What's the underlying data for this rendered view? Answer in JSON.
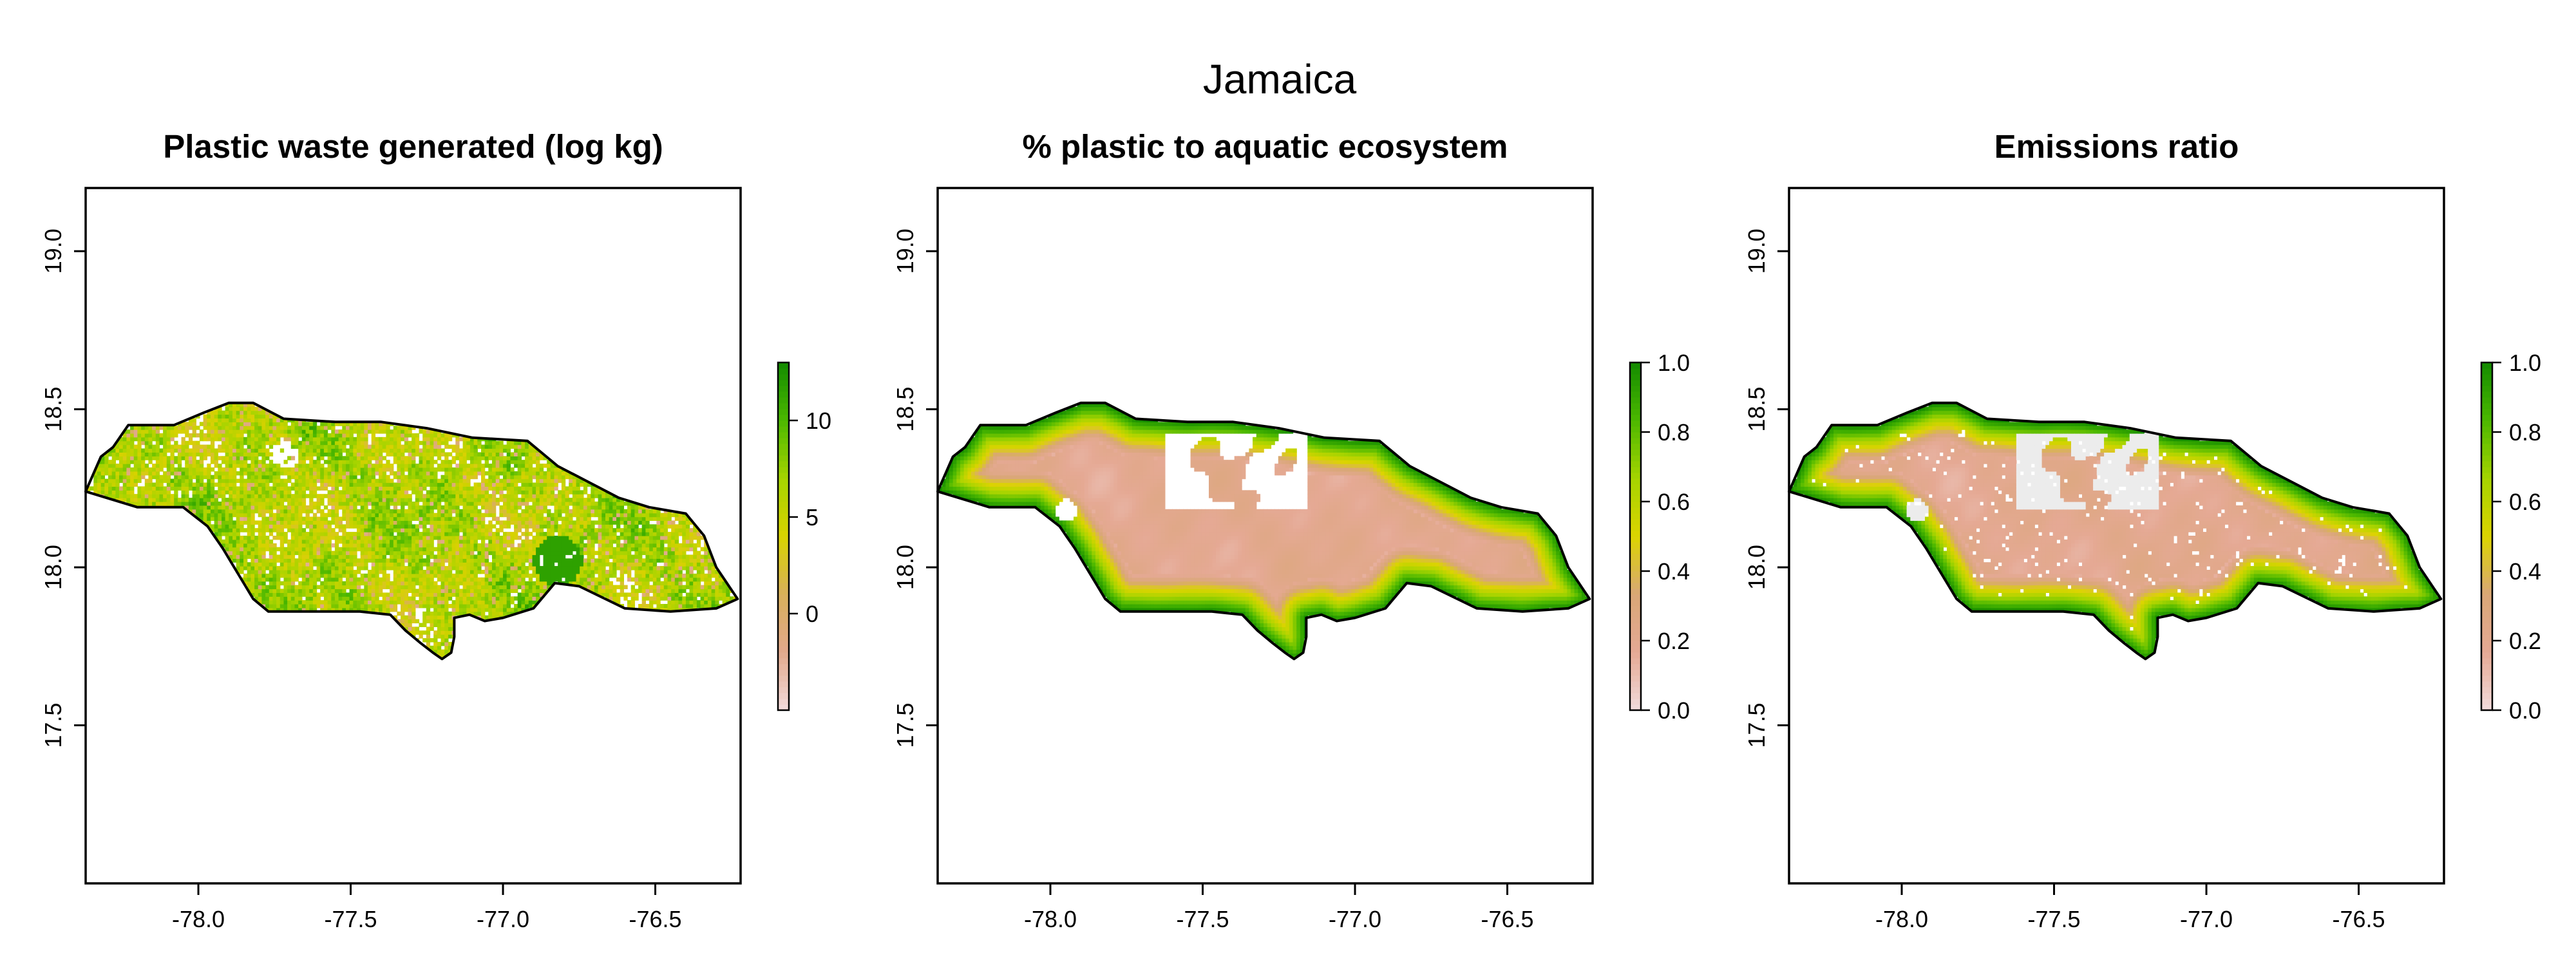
{
  "title": "Jamaica",
  "panels": [
    {
      "title": "Plastic waste generated (log kg)",
      "x_ticks": [
        "-78.0",
        "-77.5",
        "-77.0",
        "-76.5"
      ],
      "y_ticks": [
        "17.5",
        "18.0",
        "18.5",
        "19.0"
      ],
      "colorbar": {
        "range": [
          -5,
          13
        ],
        "ticks": [
          "0",
          "5",
          "10"
        ],
        "colors": [
          "#f2dcdc",
          "#e2a98c",
          "#d8b05a",
          "#d8d200",
          "#a6d400",
          "#4cb800",
          "#138b00"
        ]
      },
      "style": "waste"
    },
    {
      "title": "% plastic to aquatic ecosystem",
      "x_ticks": [
        "-78.0",
        "-77.5",
        "-77.0",
        "-76.5"
      ],
      "y_ticks": [
        "17.5",
        "18.0",
        "18.5",
        "19.0"
      ],
      "colorbar": {
        "range": [
          0,
          1
        ],
        "ticks": [
          "0.0",
          "0.2",
          "0.4",
          "0.6",
          "0.8",
          "1.0"
        ],
        "colors": [
          "#f2dcdc",
          "#e5a994",
          "#d9a777",
          "#dcd400",
          "#a6d400",
          "#4cb800",
          "#138b00"
        ]
      },
      "style": "aquatic"
    },
    {
      "title": "Emissions ratio",
      "x_ticks": [
        "-78.0",
        "-77.5",
        "-77.0",
        "-76.5"
      ],
      "y_ticks": [
        "17.5",
        "18.0",
        "18.5",
        "19.0"
      ],
      "colorbar": {
        "range": [
          0,
          1
        ],
        "ticks": [
          "0.0",
          "0.2",
          "0.4",
          "0.6",
          "0.8",
          "1.0"
        ],
        "colors": [
          "#f2dcdc",
          "#e5a994",
          "#d9a777",
          "#dcd400",
          "#a6d400",
          "#4cb800",
          "#138b00"
        ]
      },
      "style": "emissions"
    }
  ],
  "axes": {
    "xlim": [
      -78.37,
      -76.22
    ],
    "ylim": [
      17.0,
      19.2
    ],
    "x_tick_values": [
      -78.0,
      -77.5,
      -77.0,
      -76.5
    ],
    "y_tick_values": [
      17.5,
      18.0,
      18.5,
      19.0
    ]
  },
  "chart_data": {
    "type": "heatmap",
    "title": "Jamaica",
    "subplots": [
      {
        "title": "Plastic waste generated (log kg)",
        "xlim": [
          -78.37,
          -76.22
        ],
        "ylim": [
          17.0,
          19.2
        ],
        "color_range": [
          -5,
          13
        ]
      },
      {
        "title": "% plastic to aquatic ecosystem",
        "xlim": [
          -78.37,
          -76.22
        ],
        "ylim": [
          17.0,
          19.2
        ],
        "color_range": [
          0,
          1
        ]
      },
      {
        "title": "Emissions ratio",
        "xlim": [
          -78.37,
          -76.22
        ],
        "ylim": [
          17.0,
          19.2
        ],
        "color_range": [
          0,
          1
        ]
      }
    ]
  }
}
